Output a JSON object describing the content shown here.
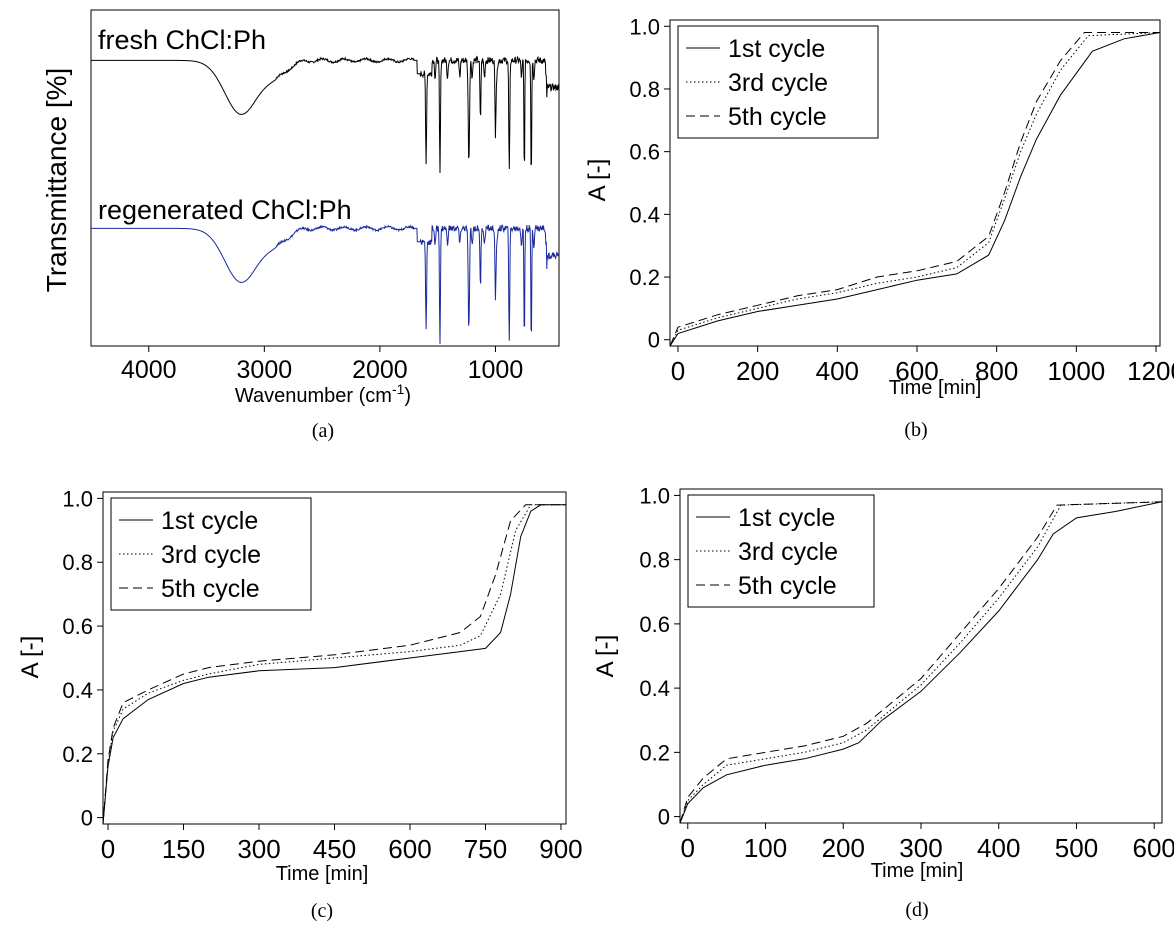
{
  "chart_data": [
    {
      "id": "a",
      "type": "line",
      "panel_label": "(a)",
      "xlabel": "Wavenumber (cm",
      "xlabel_sup": "-1",
      "xlabel_close": ")",
      "ylabel": "Transmittance [%]",
      "xlim": [
        4500,
        450
      ],
      "x_reversed": true,
      "grid": false,
      "ticks_x": [
        "4000",
        "3000",
        "2000",
        "1000"
      ],
      "tick_values_x": [
        4000,
        3000,
        2000,
        1000
      ],
      "series": [
        {
          "name": "fresh ChCl:Ph",
          "color": "#000000",
          "baseline": 0.85,
          "features": [
            {
              "center": 3200,
              "width": 200,
              "depth": 0.16
            },
            {
              "center": 1600,
              "width": 6,
              "depth": 0.26
            },
            {
              "center": 1480,
              "width": 6,
              "depth": 0.34
            },
            {
              "center": 1230,
              "width": 8,
              "depth": 0.3
            },
            {
              "center": 1130,
              "width": 6,
              "depth": 0.18
            },
            {
              "center": 1000,
              "width": 6,
              "depth": 0.22
            },
            {
              "center": 880,
              "width": 6,
              "depth": 0.28
            },
            {
              "center": 750,
              "width": 5,
              "depth": 0.34
            },
            {
              "center": 690,
              "width": 5,
              "depth": 0.36
            }
          ]
        },
        {
          "name": "regenerated ChCl:Ph",
          "color": "#1a2a9c",
          "baseline": 0.35,
          "features": [
            {
              "center": 3200,
              "width": 200,
              "depth": 0.16
            },
            {
              "center": 1600,
              "width": 6,
              "depth": 0.26
            },
            {
              "center": 1480,
              "width": 6,
              "depth": 0.34
            },
            {
              "center": 1230,
              "width": 8,
              "depth": 0.3
            },
            {
              "center": 1130,
              "width": 6,
              "depth": 0.18
            },
            {
              "center": 1000,
              "width": 6,
              "depth": 0.22
            },
            {
              "center": 880,
              "width": 6,
              "depth": 0.28
            },
            {
              "center": 750,
              "width": 5,
              "depth": 0.34
            },
            {
              "center": 690,
              "width": 5,
              "depth": 0.36
            }
          ]
        }
      ]
    },
    {
      "id": "b",
      "type": "line",
      "panel_label": "(b)",
      "xlabel": "Time [min]",
      "ylabel": "A [-]",
      "xlim": [
        -20,
        1210
      ],
      "ylim": [
        -0.02,
        1.02
      ],
      "grid": false,
      "legend": "top-left",
      "ticks_x": [
        "0",
        "200",
        "400",
        "600",
        "800",
        "1000",
        "1200"
      ],
      "tick_values_x": [
        0,
        200,
        400,
        600,
        800,
        1000,
        1200
      ],
      "ticks_y": [
        "0",
        "0.2",
        "0.4",
        "0.6",
        "0.8",
        "1.0"
      ],
      "tick_values_y": [
        0,
        0.2,
        0.4,
        0.6,
        0.8,
        1.0
      ],
      "series": [
        {
          "name": "1st cycle",
          "dash": "solid",
          "x": [
            -20,
            0,
            100,
            200,
            300,
            400,
            500,
            600,
            700,
            780,
            820,
            860,
            900,
            960,
            1040,
            1120,
            1210
          ],
          "y": [
            -0.02,
            0.02,
            0.06,
            0.09,
            0.11,
            0.13,
            0.16,
            0.19,
            0.21,
            0.27,
            0.38,
            0.52,
            0.64,
            0.78,
            0.92,
            0.96,
            0.98
          ]
        },
        {
          "name": "3rd cycle",
          "dash": "dotted",
          "x": [
            -20,
            0,
            100,
            200,
            300,
            400,
            500,
            600,
            700,
            780,
            820,
            860,
            900,
            960,
            1030,
            1210
          ],
          "y": [
            -0.02,
            0.03,
            0.07,
            0.1,
            0.13,
            0.15,
            0.18,
            0.2,
            0.23,
            0.31,
            0.45,
            0.6,
            0.72,
            0.86,
            0.97,
            0.98
          ]
        },
        {
          "name": "5th cycle",
          "dash": "dashed",
          "x": [
            -20,
            0,
            100,
            200,
            300,
            400,
            500,
            600,
            700,
            780,
            820,
            860,
            900,
            960,
            1020,
            1210
          ],
          "y": [
            -0.02,
            0.04,
            0.08,
            0.11,
            0.14,
            0.16,
            0.2,
            0.22,
            0.25,
            0.33,
            0.47,
            0.63,
            0.76,
            0.89,
            0.98,
            0.98
          ]
        }
      ]
    },
    {
      "id": "c",
      "type": "line",
      "panel_label": "(c)",
      "xlabel": "Time [min]",
      "ylabel": "A [-]",
      "xlim": [
        -10,
        910
      ],
      "ylim": [
        -0.02,
        1.02
      ],
      "grid": false,
      "legend": "top-left",
      "ticks_x": [
        "0",
        "150",
        "300",
        "450",
        "600",
        "750",
        "900"
      ],
      "tick_values_x": [
        0,
        150,
        300,
        450,
        600,
        750,
        900
      ],
      "ticks_y": [
        "0",
        "0.2",
        "0.4",
        "0.6",
        "0.8",
        "1.0"
      ],
      "tick_values_y": [
        0,
        0.2,
        0.4,
        0.6,
        0.8,
        1.0
      ],
      "series": [
        {
          "name": "1st cycle",
          "dash": "solid",
          "x": [
            -10,
            0,
            10,
            30,
            80,
            150,
            200,
            300,
            450,
            600,
            700,
            750,
            780,
            800,
            820,
            840,
            860,
            910
          ],
          "y": [
            -0.02,
            0.16,
            0.25,
            0.31,
            0.37,
            0.42,
            0.44,
            0.46,
            0.47,
            0.5,
            0.52,
            0.53,
            0.58,
            0.7,
            0.88,
            0.96,
            0.98,
            0.98
          ]
        },
        {
          "name": "3rd cycle",
          "dash": "dotted",
          "x": [
            -10,
            0,
            10,
            30,
            80,
            150,
            200,
            300,
            450,
            600,
            700,
            740,
            780,
            810,
            840,
            910
          ],
          "y": [
            -0.02,
            0.17,
            0.27,
            0.34,
            0.39,
            0.43,
            0.45,
            0.48,
            0.5,
            0.52,
            0.54,
            0.57,
            0.7,
            0.9,
            0.98,
            0.98
          ]
        },
        {
          "name": "5th cycle",
          "dash": "dashed",
          "x": [
            -10,
            0,
            10,
            30,
            80,
            150,
            200,
            300,
            450,
            600,
            700,
            740,
            770,
            800,
            830,
            910
          ],
          "y": [
            -0.02,
            0.18,
            0.28,
            0.36,
            0.4,
            0.45,
            0.47,
            0.49,
            0.51,
            0.54,
            0.58,
            0.63,
            0.76,
            0.93,
            0.98,
            0.98
          ]
        }
      ]
    },
    {
      "id": "d",
      "type": "line",
      "panel_label": "(d)",
      "xlabel": "Time [min]",
      "ylabel": "A [-]",
      "xlim": [
        -10,
        610
      ],
      "ylim": [
        -0.02,
        1.02
      ],
      "grid": false,
      "legend": "top-left",
      "ticks_x": [
        "0",
        "100",
        "200",
        "300",
        "400",
        "500",
        "600"
      ],
      "tick_values_x": [
        0,
        100,
        200,
        300,
        400,
        500,
        600
      ],
      "ticks_y": [
        "0",
        "0.2",
        "0.4",
        "0.6",
        "0.8",
        "1.0"
      ],
      "tick_values_y": [
        0,
        0.2,
        0.4,
        0.6,
        0.8,
        1.0
      ],
      "series": [
        {
          "name": "1st cycle",
          "dash": "solid",
          "x": [
            -10,
            0,
            20,
            50,
            100,
            150,
            200,
            220,
            250,
            300,
            350,
            400,
            450,
            470,
            500,
            550,
            610
          ],
          "y": [
            -0.02,
            0.04,
            0.09,
            0.13,
            0.16,
            0.18,
            0.21,
            0.23,
            0.3,
            0.39,
            0.51,
            0.64,
            0.8,
            0.88,
            0.93,
            0.95,
            0.98
          ]
        },
        {
          "name": "3rd cycle",
          "dash": "dotted",
          "x": [
            -10,
            0,
            20,
            50,
            100,
            150,
            200,
            230,
            300,
            350,
            400,
            450,
            480,
            610
          ],
          "y": [
            -0.02,
            0.05,
            0.1,
            0.16,
            0.18,
            0.2,
            0.23,
            0.27,
            0.41,
            0.54,
            0.68,
            0.84,
            0.97,
            0.98
          ]
        },
        {
          "name": "5th cycle",
          "dash": "dashed",
          "x": [
            -10,
            0,
            20,
            50,
            100,
            150,
            200,
            230,
            300,
            350,
            400,
            450,
            475,
            610
          ],
          "y": [
            -0.02,
            0.06,
            0.12,
            0.18,
            0.2,
            0.22,
            0.25,
            0.29,
            0.43,
            0.57,
            0.71,
            0.87,
            0.97,
            0.98
          ]
        }
      ]
    }
  ]
}
